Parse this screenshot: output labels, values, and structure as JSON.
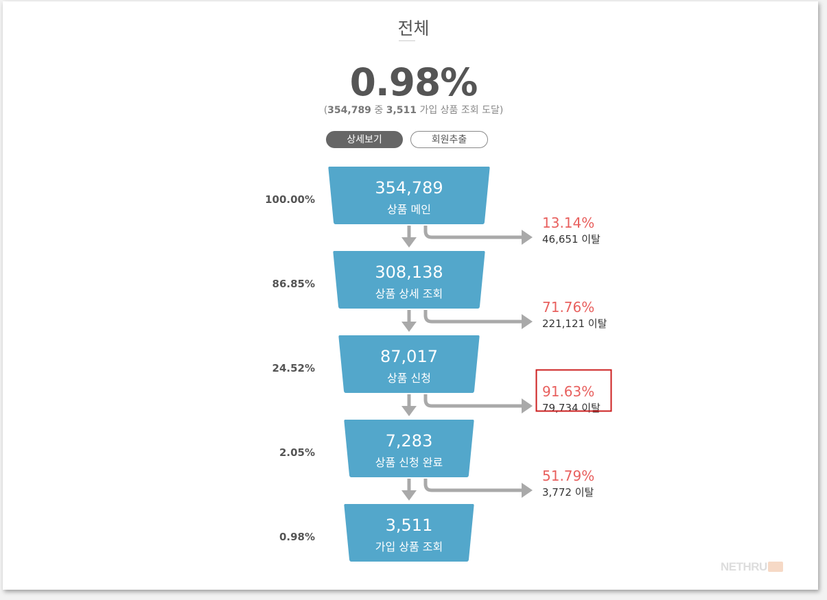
{
  "header": {
    "title": "전체",
    "conversion_rate": "0.98%",
    "summary_open": "(",
    "summary_total": "354,789",
    "summary_mid": " 중 ",
    "summary_reached": "3,511",
    "summary_tail": " 가입 상품 조회 도달)"
  },
  "buttons": {
    "detail_label": "상세보기",
    "extract_label": "회원추출"
  },
  "watermark": "NETHRU",
  "colors": {
    "stage_fill": "#53a7cb",
    "drop_rate_text": "#e8605e",
    "arrow": "#a9a9a9",
    "highlight_border": "#cc1f1f",
    "primary_button": "#666666"
  },
  "chart_data": {
    "type": "funnel",
    "stages": [
      {
        "name": "상품 메인",
        "value": 354789,
        "value_label": "354,789",
        "share_label": "100.00%"
      },
      {
        "name": "상품 상세 조회",
        "value": 308138,
        "value_label": "308,138",
        "share_label": "86.85%"
      },
      {
        "name": "상품 신청",
        "value": 87017,
        "value_label": "87,017",
        "share_label": "24.52%"
      },
      {
        "name": "상품 신청 완료",
        "value": 7283,
        "value_label": "7,283",
        "share_label": "2.05%"
      },
      {
        "name": "가입 상품 조회",
        "value": 3511,
        "value_label": "3,511",
        "share_label": "0.98%"
      }
    ],
    "dropoffs": [
      {
        "rate_label": "13.14%",
        "count_label": "46,651 이탈",
        "highlighted": false
      },
      {
        "rate_label": "71.76%",
        "count_label": "221,121 이탈",
        "highlighted": false
      },
      {
        "rate_label": "91.63%",
        "count_label": "79,734 이탈",
        "highlighted": true
      },
      {
        "rate_label": "51.79%",
        "count_label": "3,772 이탈",
        "highlighted": false
      }
    ]
  }
}
